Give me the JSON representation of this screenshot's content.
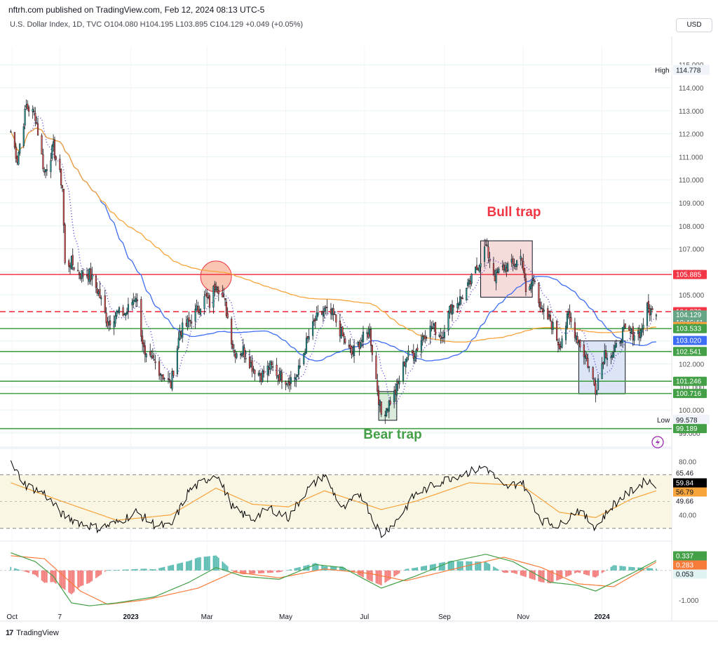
{
  "header": {
    "published_by": "nftrh.com published on TradingView.com, Feb 12, 2024 08:13 UTC-5",
    "symbol_info": "U.S. Dollar Index, 1D, TVC  O104.080  H104.195  L103.895  C104.129  +0.049 (+0.05%)",
    "currency_button": "USD"
  },
  "footer": {
    "brand": "TradingView",
    "logo_mark": "17"
  },
  "annotations": {
    "bull_trap": "Bull trap",
    "bear_trap": "Bear trap"
  },
  "colors": {
    "up": "#26a69a",
    "down": "#ef5350",
    "sma_fast": "#3d6df2",
    "sma_slow": "#f7a43b",
    "dotted": "#5b3fd1",
    "hline_red": "#f23645",
    "hline_green": "#43a047",
    "bull_box": "#f5d5d5",
    "bear_box": "#d5e8d5",
    "blue_box": "#d5e1f5",
    "circle": "#f8b8a0"
  },
  "chart_data": [
    {
      "type": "candlestick",
      "title": "U.S. Dollar Index, 1D, TVC",
      "ylim": [
        98.6,
        115.8
      ],
      "y_ticks": [
        99,
        100,
        101,
        102,
        103,
        104,
        105,
        106,
        107,
        108,
        109,
        110,
        111,
        112,
        113,
        114,
        115
      ],
      "x_tick_labels": [
        "Oct",
        "7",
        "2023",
        "Mar",
        "May",
        "Jul",
        "Sep",
        "Nov",
        "2024"
      ],
      "close_path": [
        [
          "2022-09-30",
          112.1
        ],
        [
          "2022-10-05",
          110.9
        ],
        [
          "2022-10-12",
          113.2
        ],
        [
          "2022-10-19",
          112.8
        ],
        [
          "2022-10-26",
          110.3
        ],
        [
          "2022-11-02",
          111.4
        ],
        [
          "2022-11-09",
          109.7
        ],
        [
          "2022-11-11",
          106.3
        ],
        [
          "2022-11-16",
          106.4
        ],
        [
          "2022-11-23",
          105.9
        ],
        [
          "2022-11-30",
          105.9
        ],
        [
          "2022-12-07",
          105.1
        ],
        [
          "2022-12-14",
          103.8
        ],
        [
          "2022-12-21",
          104.2
        ],
        [
          "2022-12-28",
          104.2
        ],
        [
          "2023-01-05",
          105.0
        ],
        [
          "2023-01-12",
          102.2
        ],
        [
          "2023-01-19",
          102.1
        ],
        [
          "2023-01-26",
          101.5
        ],
        [
          "2023-02-01",
          101.1
        ],
        [
          "2023-02-08",
          103.4
        ],
        [
          "2023-02-15",
          103.8
        ],
        [
          "2023-02-22",
          104.4
        ],
        [
          "2023-02-28",
          104.9
        ],
        [
          "2023-03-03",
          104.6
        ],
        [
          "2023-03-08",
          105.6
        ],
        [
          "2023-03-15",
          104.6
        ],
        [
          "2023-03-22",
          102.5
        ],
        [
          "2023-03-29",
          102.6
        ],
        [
          "2023-04-05",
          101.9
        ],
        [
          "2023-04-12",
          101.5
        ],
        [
          "2023-04-19",
          101.9
        ],
        [
          "2023-04-26",
          101.5
        ],
        [
          "2023-05-03",
          101.3
        ],
        [
          "2023-05-10",
          101.5
        ],
        [
          "2023-05-17",
          102.9
        ],
        [
          "2023-05-24",
          103.9
        ],
        [
          "2023-05-31",
          104.3
        ],
        [
          "2023-06-07",
          104.1
        ],
        [
          "2023-06-14",
          103.2
        ],
        [
          "2023-06-21",
          102.4
        ],
        [
          "2023-06-28",
          103.0
        ],
        [
          "2023-07-05",
          103.4
        ],
        [
          "2023-07-12",
          100.5
        ],
        [
          "2023-07-14",
          99.8
        ],
        [
          "2023-07-19",
          100.2
        ],
        [
          "2023-07-26",
          100.9
        ],
        [
          "2023-08-02",
          102.3
        ],
        [
          "2023-08-09",
          102.5
        ],
        [
          "2023-08-16",
          103.3
        ],
        [
          "2023-08-23",
          103.6
        ],
        [
          "2023-08-30",
          103.2
        ],
        [
          "2023-09-06",
          104.5
        ],
        [
          "2023-09-13",
          104.8
        ],
        [
          "2023-09-20",
          105.4
        ],
        [
          "2023-09-27",
          106.3
        ],
        [
          "2023-10-03",
          107.1
        ],
        [
          "2023-10-10",
          105.8
        ],
        [
          "2023-10-17",
          106.2
        ],
        [
          "2023-10-24",
          106.3
        ],
        [
          "2023-10-31",
          106.7
        ],
        [
          "2023-11-03",
          105.0
        ],
        [
          "2023-11-10",
          105.8
        ],
        [
          "2023-11-15",
          104.2
        ],
        [
          "2023-11-22",
          103.9
        ],
        [
          "2023-11-29",
          102.8
        ],
        [
          "2023-12-06",
          104.1
        ],
        [
          "2023-12-13",
          103.1
        ],
        [
          "2023-12-20",
          102.2
        ],
        [
          "2023-12-27",
          100.9
        ],
        [
          "2024-01-03",
          102.5
        ],
        [
          "2024-01-10",
          102.4
        ],
        [
          "2024-01-17",
          103.4
        ],
        [
          "2024-01-24",
          103.3
        ],
        [
          "2024-01-31",
          103.4
        ],
        [
          "2024-02-05",
          104.4
        ],
        [
          "2024-02-12",
          104.1
        ]
      ],
      "ohlc_last": {
        "open": 104.08,
        "high": 104.195,
        "low": 103.895,
        "close": 104.129,
        "change": "+0.049 (+0.05%)"
      },
      "high_label": "High",
      "high_value": "114.778",
      "low_label": "Low",
      "low_value": "99.578",
      "price_badges": [
        {
          "value": "105.885",
          "color": "#f23645",
          "text_color": "#ffffff"
        },
        {
          "value": "104.270",
          "color": "#f23645",
          "text_color": "#ffffff"
        },
        {
          "value": "104.129",
          "color": "#66a586",
          "text_color": "#ffffff",
          "sub": "10:46:41"
        },
        {
          "value": "103.634",
          "color": "#5b3fd1",
          "text_color": "#ffffff"
        },
        {
          "value": "103.629",
          "color": "#f7a43b",
          "text_color": "#131722"
        },
        {
          "value": "103.533",
          "color": "#43a047",
          "text_color": "#ffffff"
        },
        {
          "value": "103.020",
          "color": "#3d6df2",
          "text_color": "#ffffff"
        },
        {
          "value": "102.541",
          "color": "#43a047",
          "text_color": "#ffffff"
        },
        {
          "value": "101.246",
          "color": "#43a047",
          "text_color": "#ffffff"
        },
        {
          "value": "100.716",
          "color": "#43a047",
          "text_color": "#ffffff"
        },
        {
          "value": "99.189",
          "color": "#43a047",
          "text_color": "#ffffff"
        }
      ],
      "horizontal_lines": [
        {
          "value": 105.885,
          "color": "#f23645",
          "style": "solid"
        },
        {
          "value": 104.27,
          "color": "#f23645",
          "style": "dashed"
        },
        {
          "value": 103.533,
          "color": "#43a047",
          "style": "solid"
        },
        {
          "value": 102.541,
          "color": "#43a047",
          "style": "solid"
        },
        {
          "value": 101.246,
          "color": "#43a047",
          "style": "solid"
        },
        {
          "value": 100.716,
          "color": "#43a047",
          "style": "solid"
        },
        {
          "value": 99.189,
          "color": "#43a047",
          "style": "solid"
        }
      ],
      "boxes": [
        {
          "name": "bull-trap-box",
          "from": "2023-09-29",
          "to": "2023-11-08",
          "top": 107.35,
          "bottom": 104.9,
          "fill": "#f5d5d5"
        },
        {
          "name": "bear-trap-box",
          "from": "2023-07-12",
          "to": "2023-07-26",
          "top": 100.8,
          "bottom": 99.55,
          "fill": "#d5e8d5"
        },
        {
          "name": "consolidation-box",
          "from": "2023-12-14",
          "to": "2024-01-19",
          "top": 103.0,
          "bottom": 100.7,
          "fill": "#d5e1f5"
        }
      ],
      "circle": {
        "date": "2023-03-08",
        "value": 105.8,
        "fill": "#f8b8a0"
      }
    },
    {
      "type": "line",
      "name": "RSI",
      "ylim": [
        22,
        88
      ],
      "y_ticks": [
        "80.00",
        "40.00"
      ],
      "bands": [
        70,
        30
      ],
      "values_path": [
        [
          "2022-09-30",
          78
        ],
        [
          "2022-10-12",
          62
        ],
        [
          "2022-10-26",
          56
        ],
        [
          "2022-11-09",
          40
        ],
        [
          "2022-11-23",
          34
        ],
        [
          "2022-12-07",
          30
        ],
        [
          "2022-12-21",
          34
        ],
        [
          "2023-01-05",
          42
        ],
        [
          "2023-01-19",
          33
        ],
        [
          "2023-02-01",
          31
        ],
        [
          "2023-02-15",
          58
        ],
        [
          "2023-02-28",
          66
        ],
        [
          "2023-03-08",
          71
        ],
        [
          "2023-03-22",
          44
        ],
        [
          "2023-04-05",
          37
        ],
        [
          "2023-04-19",
          45
        ],
        [
          "2023-05-03",
          38
        ],
        [
          "2023-05-17",
          58
        ],
        [
          "2023-05-31",
          70
        ],
        [
          "2023-06-14",
          44
        ],
        [
          "2023-06-28",
          56
        ],
        [
          "2023-07-14",
          25
        ],
        [
          "2023-07-26",
          36
        ],
        [
          "2023-08-09",
          55
        ],
        [
          "2023-08-23",
          62
        ],
        [
          "2023-09-06",
          68
        ],
        [
          "2023-09-20",
          72
        ],
        [
          "2023-10-03",
          76
        ],
        [
          "2023-10-17",
          60
        ],
        [
          "2023-10-31",
          65
        ],
        [
          "2023-11-15",
          36
        ],
        [
          "2023-11-29",
          32
        ],
        [
          "2023-12-13",
          44
        ],
        [
          "2023-12-27",
          31
        ],
        [
          "2024-01-10",
          48
        ],
        [
          "2024-01-24",
          58
        ],
        [
          "2024-02-05",
          66
        ],
        [
          "2024-02-12",
          62
        ]
      ],
      "ma_path": [
        [
          "2022-09-30",
          64
        ],
        [
          "2022-11-09",
          50
        ],
        [
          "2022-12-21",
          36
        ],
        [
          "2023-02-01",
          40
        ],
        [
          "2023-03-08",
          60
        ],
        [
          "2023-04-05",
          48
        ],
        [
          "2023-05-03",
          46
        ],
        [
          "2023-05-31",
          58
        ],
        [
          "2023-07-14",
          44
        ],
        [
          "2023-08-09",
          50
        ],
        [
          "2023-09-20",
          64
        ],
        [
          "2023-10-31",
          62
        ],
        [
          "2023-11-29",
          42
        ],
        [
          "2023-12-27",
          38
        ],
        [
          "2024-01-24",
          52
        ],
        [
          "2024-02-12",
          58
        ]
      ],
      "badges": [
        {
          "value": "65.46",
          "color": "#ffffff",
          "text_color": "#131722"
        },
        {
          "value": "59.84",
          "color": "#000000",
          "text_color": "#ffffff"
        },
        {
          "value": "56.79",
          "color": "#f7a43b",
          "text_color": "#131722"
        },
        {
          "value": "49.66",
          "color": "#ffffff",
          "text_color": "#131722"
        }
      ]
    },
    {
      "type": "macd",
      "name": "MACD",
      "ylim": [
        -1.6,
        0.9
      ],
      "y_ticks": [
        "-1.000"
      ],
      "macd_path": [
        [
          "2022-09-30",
          0.6
        ],
        [
          "2022-10-19",
          0.3
        ],
        [
          "2022-11-02",
          -0.2
        ],
        [
          "2022-11-16",
          -1.1
        ],
        [
          "2022-11-30",
          -1.2
        ],
        [
          "2022-12-21",
          -1.1
        ],
        [
          "2023-01-19",
          -0.9
        ],
        [
          "2023-02-15",
          -0.4
        ],
        [
          "2023-03-08",
          0.1
        ],
        [
          "2023-03-29",
          -0.2
        ],
        [
          "2023-04-26",
          -0.3
        ],
        [
          "2023-05-24",
          0.2
        ],
        [
          "2023-06-14",
          0.1
        ],
        [
          "2023-07-14",
          -0.6
        ],
        [
          "2023-08-09",
          -0.2
        ],
        [
          "2023-09-06",
          0.3
        ],
        [
          "2023-10-03",
          0.55
        ],
        [
          "2023-10-24",
          0.3
        ],
        [
          "2023-11-22",
          -0.4
        ],
        [
          "2023-12-13",
          -0.5
        ],
        [
          "2023-12-27",
          -0.7
        ],
        [
          "2024-01-24",
          -0.1
        ],
        [
          "2024-02-12",
          0.337
        ]
      ],
      "signal_path": [
        [
          "2022-09-30",
          0.5
        ],
        [
          "2022-10-26",
          0.4
        ],
        [
          "2022-11-23",
          -0.7
        ],
        [
          "2022-12-14",
          -1.15
        ],
        [
          "2023-01-12",
          -1.0
        ],
        [
          "2023-02-22",
          -0.6
        ],
        [
          "2023-03-22",
          -0.05
        ],
        [
          "2023-04-26",
          -0.25
        ],
        [
          "2023-05-31",
          0.05
        ],
        [
          "2023-07-05",
          -0.1
        ],
        [
          "2023-08-02",
          -0.35
        ],
        [
          "2023-09-13",
          0.1
        ],
        [
          "2023-10-17",
          0.45
        ],
        [
          "2023-11-15",
          0.1
        ],
        [
          "2023-12-13",
          -0.45
        ],
        [
          "2024-01-10",
          -0.55
        ],
        [
          "2024-02-12",
          0.283
        ]
      ],
      "badges": [
        {
          "value": "0.337",
          "color": "#43a047",
          "text_color": "#ffffff"
        },
        {
          "value": "0.283",
          "color": "#f77c3b",
          "text_color": "#ffffff"
        },
        {
          "value": "0.053",
          "color": "#e0f2f1",
          "text_color": "#131722"
        }
      ]
    }
  ]
}
